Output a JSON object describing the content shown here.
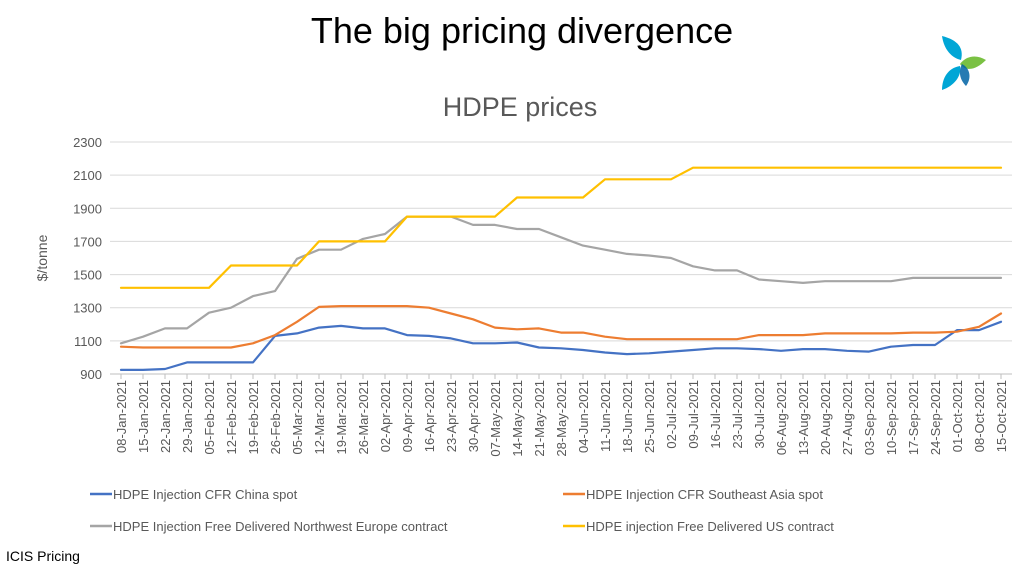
{
  "slide": {
    "title": "The big pricing divergence",
    "source": "ICIS Pricing"
  },
  "logo": {
    "icon": "icis-logo-icon",
    "colors": [
      "#00a6d6",
      "#7ac143",
      "#0063a5"
    ]
  },
  "chart_data": {
    "type": "line",
    "title": "HDPE prices",
    "ylabel": "$/tonne",
    "xlabel": "",
    "ylim": [
      900,
      2300
    ],
    "yticks": [
      900,
      1100,
      1300,
      1500,
      1700,
      1900,
      2100,
      2300
    ],
    "grid": true,
    "legend_position": "bottom",
    "x": [
      "08-Jan-2021",
      "15-Jan-2021",
      "22-Jan-2021",
      "29-Jan-2021",
      "05-Feb-2021",
      "12-Feb-2021",
      "19-Feb-2021",
      "26-Feb-2021",
      "05-Mar-2021",
      "12-Mar-2021",
      "19-Mar-2021",
      "26-Mar-2021",
      "02-Apr-2021",
      "09-Apr-2021",
      "16-Apr-2021",
      "23-Apr-2021",
      "30-Apr-2021",
      "07-May-2021",
      "14-May-2021",
      "21-May-2021",
      "28-May-2021",
      "04-Jun-2021",
      "11-Jun-2021",
      "18-Jun-2021",
      "25-Jun-2021",
      "02-Jul-2021",
      "09-Jul-2021",
      "16-Jul-2021",
      "23-Jul-2021",
      "30-Jul-2021",
      "06-Aug-2021",
      "13-Aug-2021",
      "20-Aug-2021",
      "27-Aug-2021",
      "03-Sep-2021",
      "10-Sep-2021",
      "17-Sep-2021",
      "24-Sep-2021",
      "01-Oct-2021",
      "08-Oct-2021",
      "15-Oct-2021"
    ],
    "series": [
      {
        "name": "HDPE Injection CFR China spot",
        "color": "#4472c4",
        "values": [
          925,
          925,
          930,
          970,
          970,
          970,
          970,
          1130,
          1145,
          1180,
          1190,
          1175,
          1175,
          1135,
          1130,
          1115,
          1085,
          1085,
          1090,
          1060,
          1055,
          1045,
          1030,
          1020,
          1025,
          1035,
          1045,
          1055,
          1055,
          1050,
          1040,
          1050,
          1050,
          1040,
          1035,
          1065,
          1075,
          1075,
          1165,
          1165,
          1215
        ]
      },
      {
        "name": "HDPE Injection CFR Southeast Asia spot",
        "color": "#ed7d31",
        "values": [
          1065,
          1060,
          1060,
          1060,
          1060,
          1060,
          1085,
          1135,
          1215,
          1305,
          1310,
          1310,
          1310,
          1310,
          1300,
          1265,
          1230,
          1180,
          1170,
          1175,
          1150,
          1150,
          1125,
          1110,
          1110,
          1110,
          1110,
          1110,
          1110,
          1135,
          1135,
          1135,
          1145,
          1145,
          1145,
          1145,
          1150,
          1150,
          1155,
          1185,
          1265
        ]
      },
      {
        "name": "HDPE Injection Free Delivered Northwest Europe contract",
        "color": "#a5a5a5",
        "values": [
          1085,
          1125,
          1175,
          1175,
          1270,
          1300,
          1370,
          1400,
          1595,
          1650,
          1650,
          1715,
          1745,
          1850,
          1850,
          1850,
          1800,
          1800,
          1775,
          1775,
          1725,
          1675,
          1650,
          1625,
          1615,
          1600,
          1550,
          1525,
          1525,
          1470,
          1460,
          1450,
          1460,
          1460,
          1460,
          1460,
          1480,
          1480,
          1480,
          1480,
          1480
        ]
      },
      {
        "name": "HDPE injection Free Delivered US contract",
        "color": "#ffc000",
        "values": [
          1420,
          1420,
          1420,
          1420,
          1420,
          1555,
          1555,
          1555,
          1555,
          1700,
          1700,
          1700,
          1700,
          1850,
          1850,
          1850,
          1850,
          1850,
          1965,
          1965,
          1965,
          1965,
          2075,
          2075,
          2075,
          2075,
          2145,
          2145,
          2145,
          2145,
          2145,
          2145,
          2145,
          2145,
          2145,
          2145,
          2145,
          2145,
          2145,
          2145,
          2145
        ]
      }
    ]
  }
}
